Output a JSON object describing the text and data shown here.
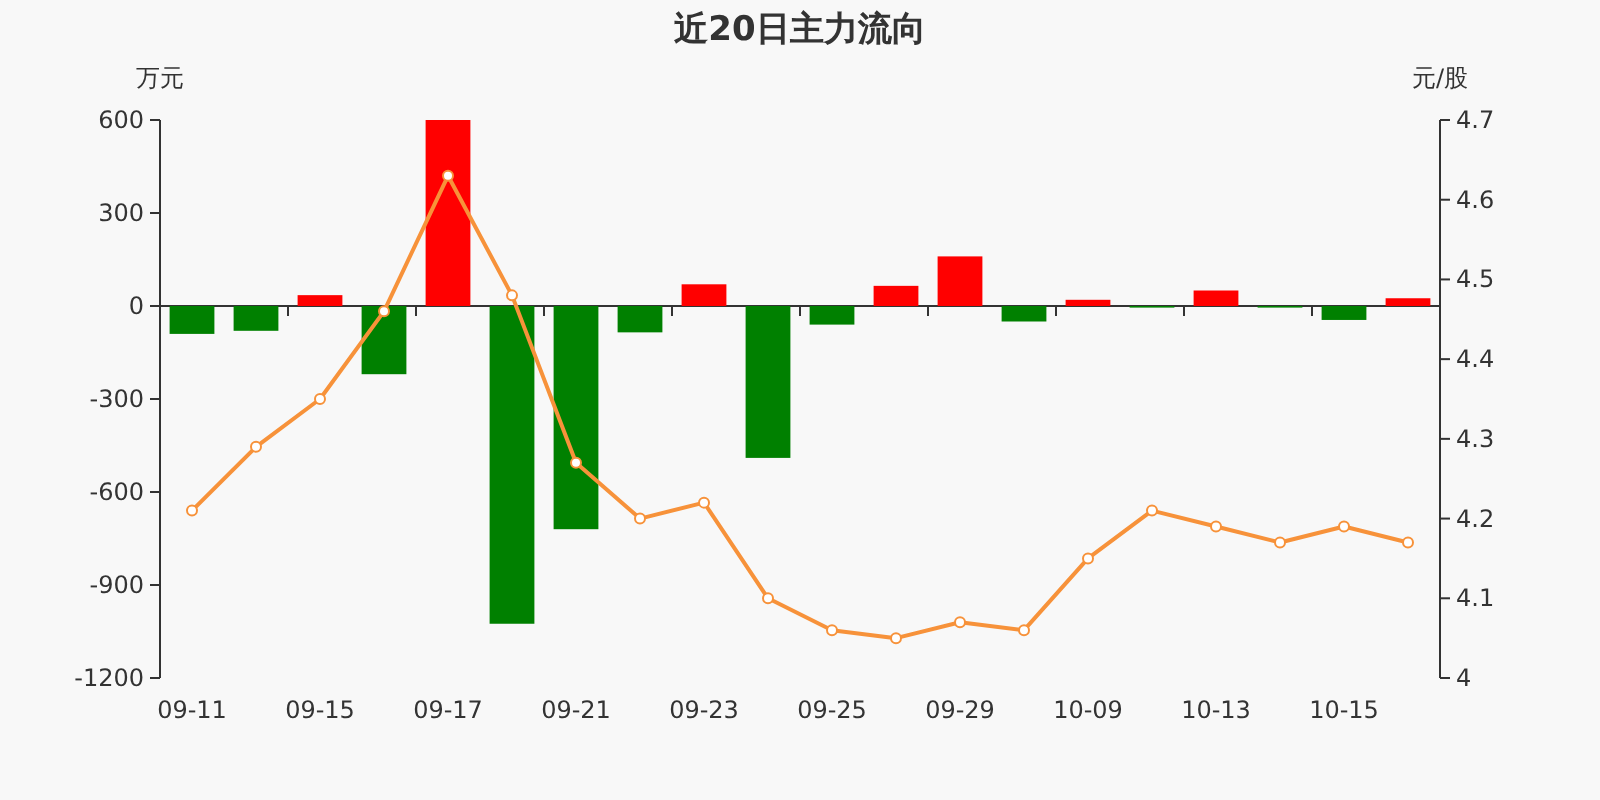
{
  "chart_data": {
    "type": "bar",
    "title": "近20日主力流向",
    "ylabel": "万元",
    "y2label": "元/股",
    "categories": [
      "09-11",
      null,
      "09-15",
      null,
      "09-17",
      null,
      "09-21",
      null,
      "09-23",
      null,
      "09-25",
      null,
      "09-29",
      null,
      "10-09",
      null,
      "10-13",
      null,
      "10-15",
      null
    ],
    "ylim": [
      -1200,
      600
    ],
    "yticks": [
      -1200,
      -900,
      -600,
      -300,
      0,
      300,
      600
    ],
    "y2lim": [
      4,
      4.7
    ],
    "y2ticks": [
      4,
      4.1,
      4.2,
      4.3,
      4.4,
      4.5,
      4.6,
      4.7
    ],
    "series": [
      {
        "colors": [
          "#008000",
          "#008000",
          "#ff0000",
          "#008000",
          "#ff0000",
          "#008000",
          "#008000",
          "#008000",
          "#ff0000",
          "#008000",
          "#008000",
          "#ff0000",
          "#ff0000",
          "#008000",
          "#ff0000",
          "#008000",
          "#ff0000",
          "#008000",
          "#008000",
          "#ff0000"
        ],
        "values": [
          -90,
          -80,
          35,
          -220,
          600,
          -1025,
          -720,
          -85,
          70,
          -490,
          -60,
          65,
          160,
          -50,
          20,
          -5,
          50,
          -5,
          -45,
          25
        ]
      },
      {
        "type": "line",
        "axis": "y2",
        "color": "#f7923a",
        "marker": "circle",
        "values": [
          4.21,
          4.29,
          4.35,
          4.46,
          4.63,
          4.48,
          4.27,
          4.2,
          4.22,
          4.1,
          4.06,
          4.05,
          4.07,
          4.06,
          4.15,
          4.21,
          4.19,
          4.17,
          4.19,
          4.17
        ]
      }
    ]
  }
}
